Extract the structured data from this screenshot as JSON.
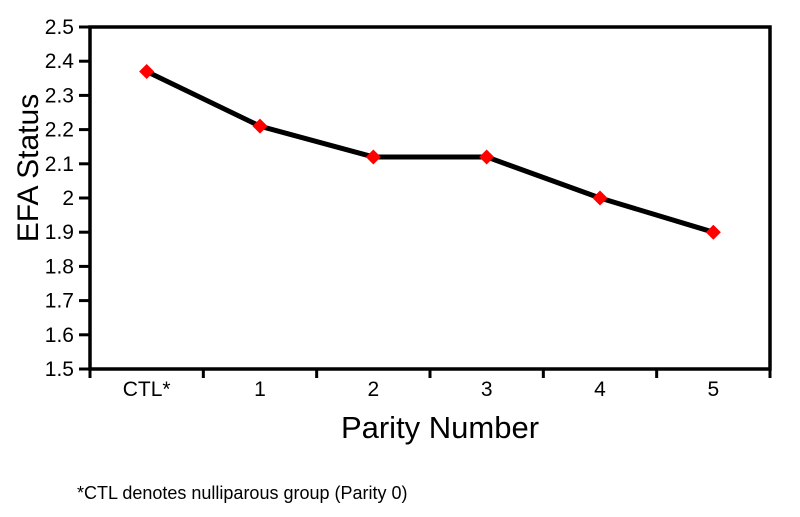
{
  "chart_data": {
    "type": "line",
    "title": "",
    "categories": [
      "CTL*",
      "1",
      "2",
      "3",
      "4",
      "5"
    ],
    "series": [
      {
        "name": "EFA Status",
        "values": [
          2.37,
          2.21,
          2.12,
          2.12,
          2.0,
          1.9
        ]
      }
    ],
    "xlabel": "Parity Number",
    "ylabel": "EFA Status",
    "ylim": [
      1.5,
      2.5
    ],
    "ytick_labels": [
      "2.5",
      "2.4",
      "2.3",
      "2.2",
      "2.1",
      "2",
      "1.9",
      "1.8",
      "1.7",
      "1.6",
      "1.5"
    ],
    "grid": false,
    "legend": "none",
    "marker": "diamond",
    "marker_color": "#FF0000",
    "line_color": "#000000",
    "axis_color": "#000000",
    "text_color": "#000000",
    "background": "#FFFFFF"
  },
  "footnote": "*CTL denotes nulliparous group (Parity 0)"
}
